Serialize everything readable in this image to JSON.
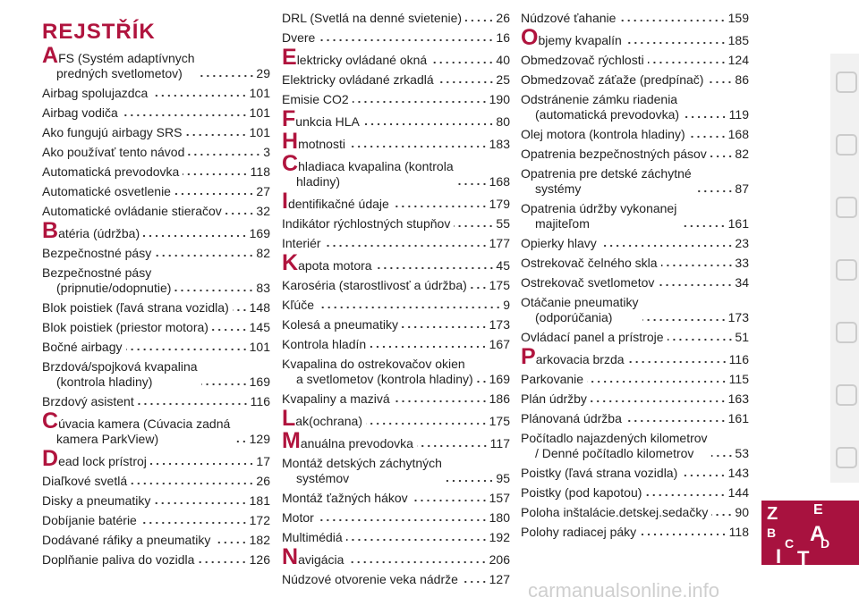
{
  "header": {
    "title": "REJSTŘÍK"
  },
  "columns": [
    [
      {
        "initial": "A",
        "label": "FS (Systém adaptívnych\npredných svetlometov)",
        "page": 29
      },
      {
        "label": "Airbag spolujazdca",
        "page": 101
      },
      {
        "label": "Airbag vodiča",
        "page": 101
      },
      {
        "label": "Ako fungujú airbagy SRS",
        "page": 101
      },
      {
        "label": "Ako používať tento návod",
        "page": 3
      },
      {
        "label": "Automatická prevodovka",
        "page": 118
      },
      {
        "label": "Automatické osvetlenie",
        "page": 27
      },
      {
        "label": "Automatické ovládanie stieračov",
        "page": 32
      },
      {
        "initial": "B",
        "label": "atéria (údržba)",
        "page": 169
      },
      {
        "label": "Bezpečnostné pásy",
        "page": 82
      },
      {
        "label": "Bezpečnostné pásy\n(pripnutie/odopnutie)",
        "page": 83
      },
      {
        "label": "Blok poistiek (ľavá strana vozidla)",
        "page": 148
      },
      {
        "label": "Blok poistiek (priestor motora)",
        "page": 145
      },
      {
        "label": "Bočné airbagy",
        "page": 101
      },
      {
        "label": "Brzdová/spojková kvapalina\n(kontrola hladiny)",
        "page": 169
      },
      {
        "label": "Brzdový asistent",
        "page": 116
      },
      {
        "initial": "C",
        "label": "úvacia kamera (Cúvacia zadná\nkamera ParkView)",
        "page": 129
      },
      {
        "initial": "D",
        "label": "ead lock prístroj",
        "page": 17
      },
      {
        "label": "Diaľkové svetlá",
        "page": 26
      },
      {
        "label": "Disky a pneumatiky",
        "page": 181
      },
      {
        "label": "Dobíjanie batérie",
        "page": 172
      },
      {
        "label": "Dodávané ráfiky a pneumatiky",
        "page": 182
      },
      {
        "label": "Doplňanie paliva do vozidla",
        "page": 126
      }
    ],
    [
      {
        "label": "DRL (Svetlá na denné svietenie)",
        "page": 26
      },
      {
        "label": "Dvere",
        "page": 16
      },
      {
        "initial": "E",
        "label": "lektricky ovládané okná",
        "page": 40
      },
      {
        "label": "Elektricky ovládané zrkadlá",
        "page": 25
      },
      {
        "label": "Emisie CO2",
        "page": 190
      },
      {
        "initial": "F",
        "label": "unkcia HLA",
        "page": 80
      },
      {
        "initial": "H",
        "label": "motnosti",
        "page": 183
      },
      {
        "initial": "C",
        "label": "hladiaca kvapalina (kontrola\nhladiny)",
        "page": 168
      },
      {
        "initial": "I",
        "label": "dentifikačné údaje",
        "page": 179
      },
      {
        "label": "Indikátor rýchlostných stupňov",
        "page": 55
      },
      {
        "label": "Interiér",
        "page": 177
      },
      {
        "initial": "K",
        "label": "apota motora",
        "page": 45
      },
      {
        "label": "Karoséria (starostlivosť a údržba)",
        "page": 175
      },
      {
        "label": "Kľúče",
        "page": 9
      },
      {
        "label": "Kolesá a pneumatiky",
        "page": 173
      },
      {
        "label": "Kontrola hladín",
        "page": 167
      },
      {
        "label": "Kvapalina do ostrekovačov okien\na svetlometov (kontrola hladiny)",
        "page": 169
      },
      {
        "label": "Kvapaliny a mazivá",
        "page": 186
      },
      {
        "initial": "L",
        "label": "ak(ochrana)",
        "page": 175
      },
      {
        "initial": "M",
        "label": "anuálna prevodovka",
        "page": 117
      },
      {
        "label": "Montáž detských záchytných\nsystémov",
        "page": 95
      },
      {
        "label": "Montáž ťažných hákov",
        "page": 157
      },
      {
        "label": "Motor",
        "page": 180
      },
      {
        "label": "Multimédiá",
        "page": 192
      },
      {
        "initial": "N",
        "label": "avigácia",
        "page": 206
      },
      {
        "label": "Núdzové otvorenie veka nádrže",
        "page": 127
      }
    ],
    [
      {
        "label": "Núdzové ťahanie",
        "page": 159
      },
      {
        "initial": "O",
        "label": "bjemy kvapalín",
        "page": 185
      },
      {
        "label": "Obmedzovač rýchlosti",
        "page": 124
      },
      {
        "label": "Obmedzovač záťaže (predpínač)",
        "page": 86
      },
      {
        "label": "Odstránenie zámku riadenia\n(automatická prevodovka)",
        "page": 119
      },
      {
        "label": "Olej motora (kontrola hladiny)",
        "page": 168
      },
      {
        "label": "Opatrenia bezpečnostných pásov",
        "page": 82
      },
      {
        "label": "Opatrenia pre detské záchytné\nsystémy",
        "page": 87
      },
      {
        "label": "Opatrenia údržby vykonanej\nmajiteľom",
        "page": 161
      },
      {
        "label": "Opierky hlavy",
        "page": 23
      },
      {
        "label": "Ostrekovač čelného skla",
        "page": 33
      },
      {
        "label": "Ostrekovač svetlometov",
        "page": 34
      },
      {
        "label": "Otáčanie pneumatiky\n(odporúčania)",
        "page": 173
      },
      {
        "label": "Ovládací panel a prístroje",
        "page": 51
      },
      {
        "initial": "P",
        "label": "arkovacia brzda",
        "page": 116
      },
      {
        "label": "Parkovanie",
        "page": 115
      },
      {
        "label": "Plán údržby",
        "page": 163
      },
      {
        "label": "Plánovaná údržba",
        "page": 161
      },
      {
        "label": "Počítadlo najazdených kilometrov\n/ Denné počítadlo kilometrov",
        "page": 53
      },
      {
        "label": "Poistky (ľavá strana vozidla)",
        "page": 143
      },
      {
        "label": "Poistky (pod kapotou)",
        "page": 144
      },
      {
        "label": "Poloha inštalácie.detskej.sedačky",
        "page": 90
      },
      {
        "label": "Polohy radiacej páky",
        "page": 118
      }
    ]
  ],
  "badge": [
    "Z",
    "E",
    "B",
    "A",
    "C",
    "D",
    "I",
    "T"
  ],
  "watermark": "carmanualsonline.info"
}
